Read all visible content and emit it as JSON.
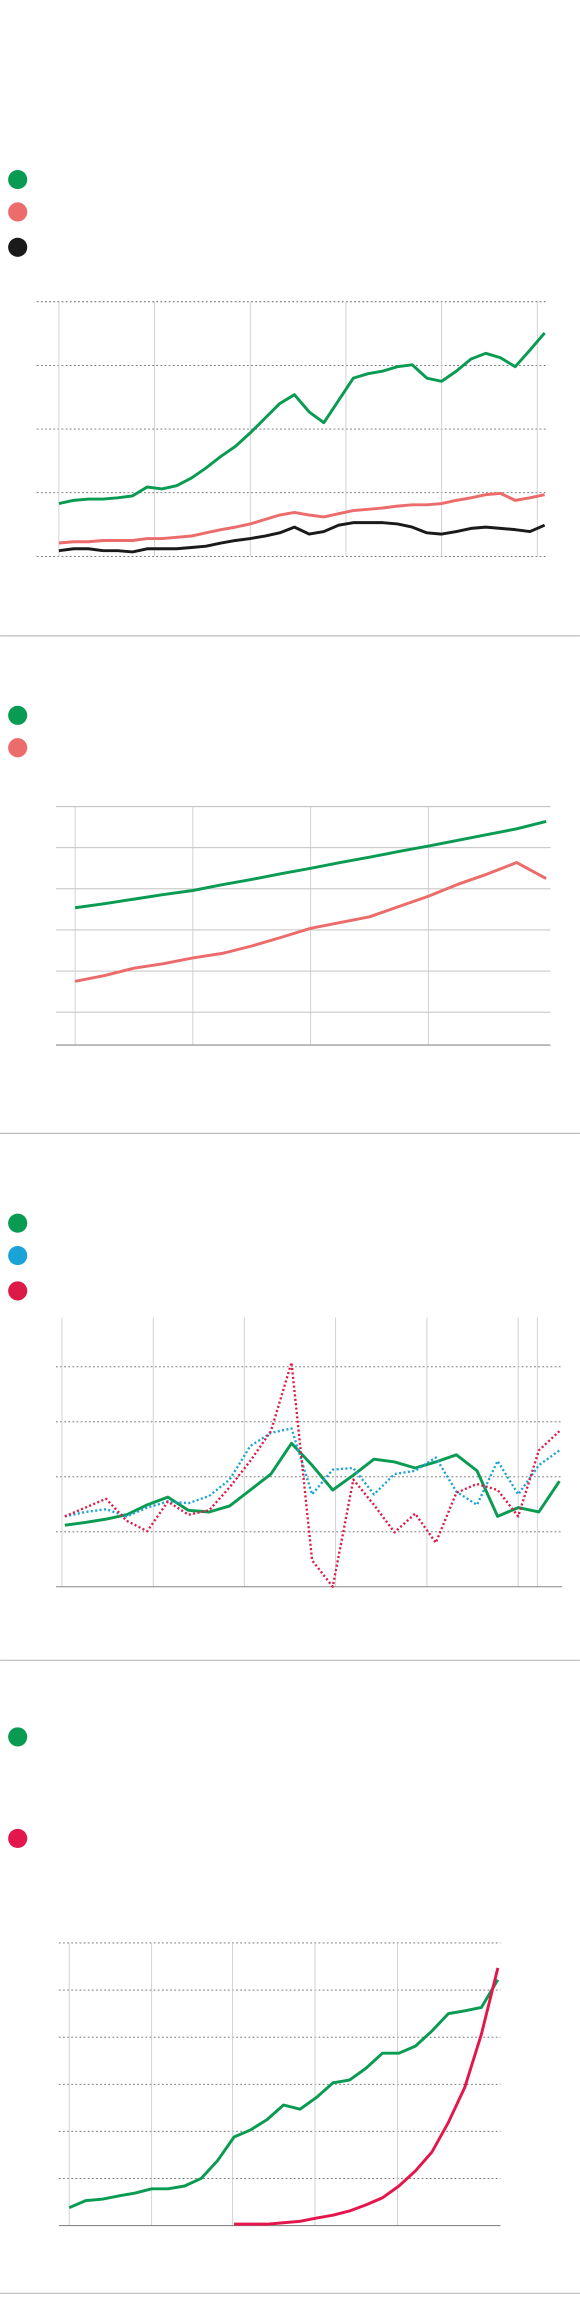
{
  "chart_data": [
    {
      "type": "line",
      "grid": "dotted",
      "x": [
        0,
        1,
        2,
        3,
        4,
        5,
        6,
        7,
        8,
        9,
        10,
        11,
        12,
        13,
        14,
        15,
        16,
        17,
        18,
        19,
        20,
        21,
        22,
        23,
        24,
        25,
        26,
        27,
        28,
        29,
        30,
        31,
        32,
        33
      ],
      "xlim": [
        -1.5,
        33.2
      ],
      "xticks": [
        0,
        6.5,
        13,
        19.5,
        26,
        32.5
      ],
      "ylim": [
        0,
        4
      ],
      "yticks": [
        0,
        1,
        2,
        3,
        4
      ],
      "series": [
        {
          "color": "#0a9b53",
          "style": "solid",
          "values": [
            0.83,
            0.88,
            0.9,
            0.9,
            0.92,
            0.95,
            1.09,
            1.06,
            1.11,
            1.23,
            1.39,
            1.57,
            1.73,
            1.94,
            2.17,
            2.4,
            2.54,
            2.27,
            2.1,
            2.45,
            2.8,
            2.87,
            2.91,
            2.98,
            3.01,
            2.8,
            2.75,
            2.91,
            3.1,
            3.19,
            3.12,
            2.98,
            3.24,
            3.51
          ]
        },
        {
          "color": "#ec6b6b",
          "style": "solid",
          "values": [
            0.21,
            0.23,
            0.23,
            0.25,
            0.25,
            0.25,
            0.28,
            0.28,
            0.3,
            0.32,
            0.37,
            0.42,
            0.46,
            0.51,
            0.58,
            0.65,
            0.69,
            0.65,
            0.62,
            0.67,
            0.72,
            0.74,
            0.76,
            0.79,
            0.81,
            0.81,
            0.83,
            0.88,
            0.92,
            0.97,
            0.99,
            0.88,
            0.92,
            0.97
          ]
        },
        {
          "color": "#1a1a1a",
          "style": "solid",
          "values": [
            0.09,
            0.12,
            0.12,
            0.09,
            0.09,
            0.07,
            0.12,
            0.12,
            0.12,
            0.14,
            0.16,
            0.21,
            0.25,
            0.28,
            0.32,
            0.37,
            0.46,
            0.35,
            0.39,
            0.49,
            0.53,
            0.53,
            0.53,
            0.51,
            0.46,
            0.37,
            0.35,
            0.39,
            0.44,
            0.46,
            0.44,
            0.42,
            0.39,
            0.49
          ]
        }
      ]
    },
    {
      "type": "line",
      "grid": "solid",
      "x": [
        0,
        1,
        2,
        3,
        4,
        5,
        6,
        7,
        8,
        9,
        10,
        11,
        12,
        13,
        14,
        15,
        16
      ],
      "xlim": [
        -0.65,
        16.15
      ],
      "xticks": [
        0,
        4,
        8,
        12
      ],
      "ylim": [
        -0.8,
        5
      ],
      "yticks": [
        0,
        1,
        2,
        3,
        4,
        5
      ],
      "series": [
        {
          "color": "#0a9b53",
          "style": "solid",
          "values": [
            2.54,
            2.64,
            2.75,
            2.86,
            2.96,
            3.1,
            3.23,
            3.37,
            3.5,
            3.64,
            3.77,
            3.91,
            4.04,
            4.18,
            4.32,
            4.46,
            4.64
          ]
        },
        {
          "color": "#ec6b6b",
          "style": "solid",
          "values": [
            0.75,
            0.89,
            1.07,
            1.18,
            1.32,
            1.43,
            1.61,
            1.82,
            2.04,
            2.18,
            2.32,
            2.57,
            2.82,
            3.11,
            3.36,
            3.64,
            3.25
          ]
        }
      ]
    },
    {
      "type": "line",
      "grid": "dotted",
      "x": [
        0,
        1,
        2,
        3,
        4,
        5,
        6,
        7,
        8,
        9,
        10,
        11,
        12,
        13,
        14,
        15,
        16,
        17,
        18,
        19,
        20,
        21,
        22,
        23,
        24
      ],
      "xlim": [
        -0.43,
        24.14
      ],
      "xticks": [
        -0.14,
        4.29,
        8.71,
        13.14,
        17.57,
        22,
        22.93
      ],
      "ylim": [
        0,
        4.9
      ],
      "yticks": [
        1,
        2,
        3,
        4
      ],
      "series": [
        {
          "color": "#0a9b53",
          "style": "solid",
          "values": [
            1.12,
            1.17,
            1.23,
            1.31,
            1.49,
            1.63,
            1.39,
            1.36,
            1.47,
            1.76,
            2.05,
            2.61,
            2.21,
            1.76,
            2.03,
            2.32,
            2.27,
            2.16,
            2.27,
            2.4,
            2.11,
            1.28,
            1.44,
            1.36,
            1.92
          ]
        },
        {
          "color": "#1aa3d6",
          "style": "dotted",
          "values": [
            1.28,
            1.36,
            1.41,
            1.28,
            1.44,
            1.55,
            1.52,
            1.65,
            1.95,
            2.56,
            2.8,
            2.88,
            1.68,
            2.13,
            2.16,
            1.68,
            2.05,
            2.11,
            2.35,
            1.73,
            1.49,
            2.29,
            1.68,
            2.21,
            2.48
          ]
        },
        {
          "color": "#dd1947",
          "style": "dotted",
          "values": [
            1.28,
            1.44,
            1.6,
            1.2,
            1.01,
            1.55,
            1.31,
            1.39,
            1.81,
            2.29,
            2.83,
            4.08,
            0.48,
            0,
            1.95,
            1.49,
            0.99,
            1.33,
            0.8,
            1.71,
            1.87,
            1.76,
            1.28,
            2.48,
            2.83
          ]
        }
      ]
    },
    {
      "type": "line",
      "grid": "dotted",
      "x": [
        0,
        1,
        2,
        3,
        4,
        5,
        6,
        7,
        8,
        9,
        10,
        11,
        12,
        13,
        14,
        15,
        16,
        17,
        18,
        19,
        20,
        21,
        22,
        23,
        24,
        25,
        26
      ],
      "xlim": [
        -0.625,
        26.16
      ],
      "xticks": [
        0,
        5,
        9.91,
        14.91,
        19.91
      ],
      "ylim": [
        0,
        6
      ],
      "yticks": [
        1,
        2,
        3,
        4,
        5,
        6
      ],
      "series": [
        {
          "color": "#0a9b53",
          "style": "solid",
          "values": [
            0.38,
            0.53,
            0.56,
            0.63,
            0.69,
            0.78,
            0.78,
            0.84,
            1.0,
            1.38,
            1.88,
            2.03,
            2.25,
            2.56,
            2.47,
            2.72,
            3.03,
            3.09,
            3.34,
            3.66,
            3.66,
            3.81,
            4.13,
            4.5,
            4.56,
            4.63,
            5.22
          ]
        },
        {
          "color": "#e3174c",
          "style": "solid",
          "values": [
            null,
            null,
            null,
            null,
            null,
            null,
            null,
            null,
            null,
            null,
            0.03,
            0.03,
            0.03,
            0.06,
            0.09,
            0.16,
            0.22,
            0.31,
            0.44,
            0.59,
            0.84,
            1.16,
            1.56,
            2.19,
            2.94,
            4.06,
            5.47
          ]
        }
      ]
    }
  ]
}
